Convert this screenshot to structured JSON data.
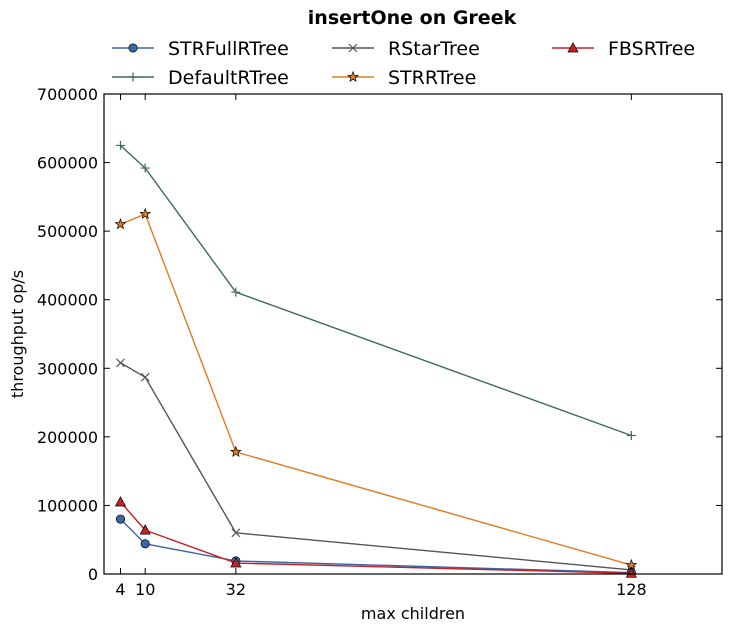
{
  "chart_data": {
    "type": "line",
    "title": "insertOne on Greek",
    "xlabel": "max children",
    "ylabel": "throughput op/s",
    "x": [
      4,
      10,
      32,
      128
    ],
    "x_ticks": [
      "4",
      "10",
      "32",
      "128"
    ],
    "xlim": [
      0,
      150
    ],
    "ylim": [
      0,
      700000
    ],
    "y_ticks": [
      "0",
      "100000",
      "200000",
      "300000",
      "400000",
      "500000",
      "600000",
      "700000"
    ],
    "grid": false,
    "legend_position": "top",
    "series": [
      {
        "name": "STRFullRTree",
        "marker": "circle",
        "color": "#3b66a6",
        "values": [
          80000,
          44000,
          19000,
          2000
        ]
      },
      {
        "name": "DefaultRTree",
        "marker": "plus",
        "color": "#3d6b5a",
        "values": [
          625000,
          592000,
          411000,
          202000
        ]
      },
      {
        "name": "RStarTree",
        "marker": "x",
        "color": "#555555",
        "values": [
          308000,
          287000,
          60000,
          6000
        ]
      },
      {
        "name": "STRRTree",
        "marker": "star",
        "color": "#e07b22",
        "values": [
          510000,
          525000,
          178000,
          13000
        ]
      },
      {
        "name": "FBSRTree",
        "marker": "triangle",
        "color": "#c42026",
        "values": [
          105000,
          64000,
          16000,
          1000
        ]
      }
    ]
  }
}
